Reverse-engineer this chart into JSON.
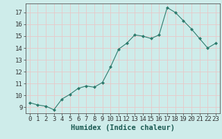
{
  "x": [
    0,
    1,
    2,
    3,
    4,
    5,
    6,
    7,
    8,
    9,
    10,
    11,
    12,
    13,
    14,
    15,
    16,
    17,
    18,
    19,
    20,
    21,
    22,
    23
  ],
  "y": [
    9.4,
    9.2,
    9.1,
    8.8,
    9.7,
    10.1,
    10.6,
    10.8,
    10.7,
    11.1,
    12.4,
    13.9,
    14.4,
    15.1,
    15.0,
    14.8,
    15.1,
    17.4,
    17.0,
    16.3,
    15.6,
    14.8,
    14.0,
    14.4
  ],
  "xlabel": "Humidex (Indice chaleur)",
  "ylim": [
    8.5,
    17.75
  ],
  "xlim": [
    -0.5,
    23.5
  ],
  "yticks": [
    9,
    10,
    11,
    12,
    13,
    14,
    15,
    16,
    17
  ],
  "xticks": [
    0,
    1,
    2,
    3,
    4,
    5,
    6,
    7,
    8,
    9,
    10,
    11,
    12,
    13,
    14,
    15,
    16,
    17,
    18,
    19,
    20,
    21,
    22,
    23
  ],
  "line_color": "#2d7b6d",
  "marker": "D",
  "marker_size": 2.0,
  "bg_color": "#ceecea",
  "grid_color": "#e8c8c8",
  "xlabel_fontsize": 7.5,
  "tick_fontsize": 6.5
}
